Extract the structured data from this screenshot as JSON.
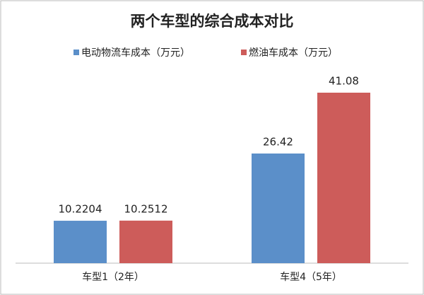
{
  "chart_data": {
    "type": "bar",
    "title": "两个车型的综合成本对比",
    "categories": [
      "车型1（2年）",
      "车型4（5年）"
    ],
    "series": [
      {
        "name": "电动物流车成本（万元）",
        "color": "#5b8fc9",
        "values": [
          10.2204,
          26.42
        ]
      },
      {
        "name": "燃油车成本（万元）",
        "color": "#cd5c5a",
        "values": [
          10.2512,
          41.08
        ]
      }
    ],
    "legend": "top"
  }
}
